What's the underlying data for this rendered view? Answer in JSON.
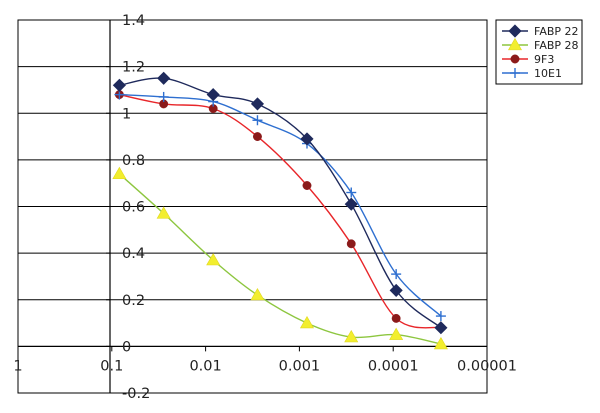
{
  "chart_data": {
    "type": "line",
    "title": "",
    "xlabel": "",
    "ylabel": "",
    "x_scale": "log",
    "x_reversed": true,
    "xlim": [
      1,
      1e-05
    ],
    "ylim": [
      -0.2,
      1.4
    ],
    "grid": true,
    "legend_position": "top-right",
    "x_ticks": [
      {
        "value": 1,
        "label": "1"
      },
      {
        "value": 0.1,
        "label": "0.1"
      },
      {
        "value": 0.01,
        "label": "0.01"
      },
      {
        "value": 0.001,
        "label": "0.001"
      },
      {
        "value": 0.0001,
        "label": "0.0001"
      },
      {
        "value": 1e-05,
        "label": "0.00001"
      }
    ],
    "y_ticks": [
      {
        "value": 1.4,
        "label": "1.4"
      },
      {
        "value": 1.2,
        "label": "1.2"
      },
      {
        "value": 1,
        "label": "1"
      },
      {
        "value": 0.8,
        "label": "0.8"
      },
      {
        "value": 0.6,
        "label": "0.6"
      },
      {
        "value": 0.4,
        "label": "0.4"
      },
      {
        "value": 0.2,
        "label": "0.2"
      },
      {
        "value": 0,
        "label": "0"
      },
      {
        "value": -0.2,
        "label": "-0.2"
      }
    ],
    "x": [
      0.083,
      0.028,
      0.0083,
      0.0028,
      0.00083,
      0.00028,
      9.3e-05,
      3.1e-05
    ],
    "series": [
      {
        "name": "FABP 22",
        "color": "#1F2A5C",
        "marker": "diamond",
        "values": [
          1.12,
          1.15,
          1.08,
          1.04,
          0.89,
          0.61,
          0.24,
          0.08
        ]
      },
      {
        "name": "FABP 28",
        "color": "#8DC63F",
        "marker": "triangle",
        "marker_color": "#F2EE2E",
        "values": [
          0.74,
          0.57,
          0.37,
          0.22,
          0.1,
          0.04,
          0.05,
          0.01
        ]
      },
      {
        "name": "9F3",
        "color": "#E8262A",
        "marker": "circle",
        "marker_color": "#8B1A1A",
        "values": [
          1.08,
          1.04,
          1.02,
          0.9,
          0.69,
          0.44,
          0.12,
          0.08
        ]
      },
      {
        "name": "10E1",
        "color": "#2E6FD0",
        "marker": "plus",
        "values": [
          1.08,
          1.07,
          1.05,
          0.97,
          0.87,
          0.66,
          0.31,
          0.13
        ]
      }
    ]
  }
}
